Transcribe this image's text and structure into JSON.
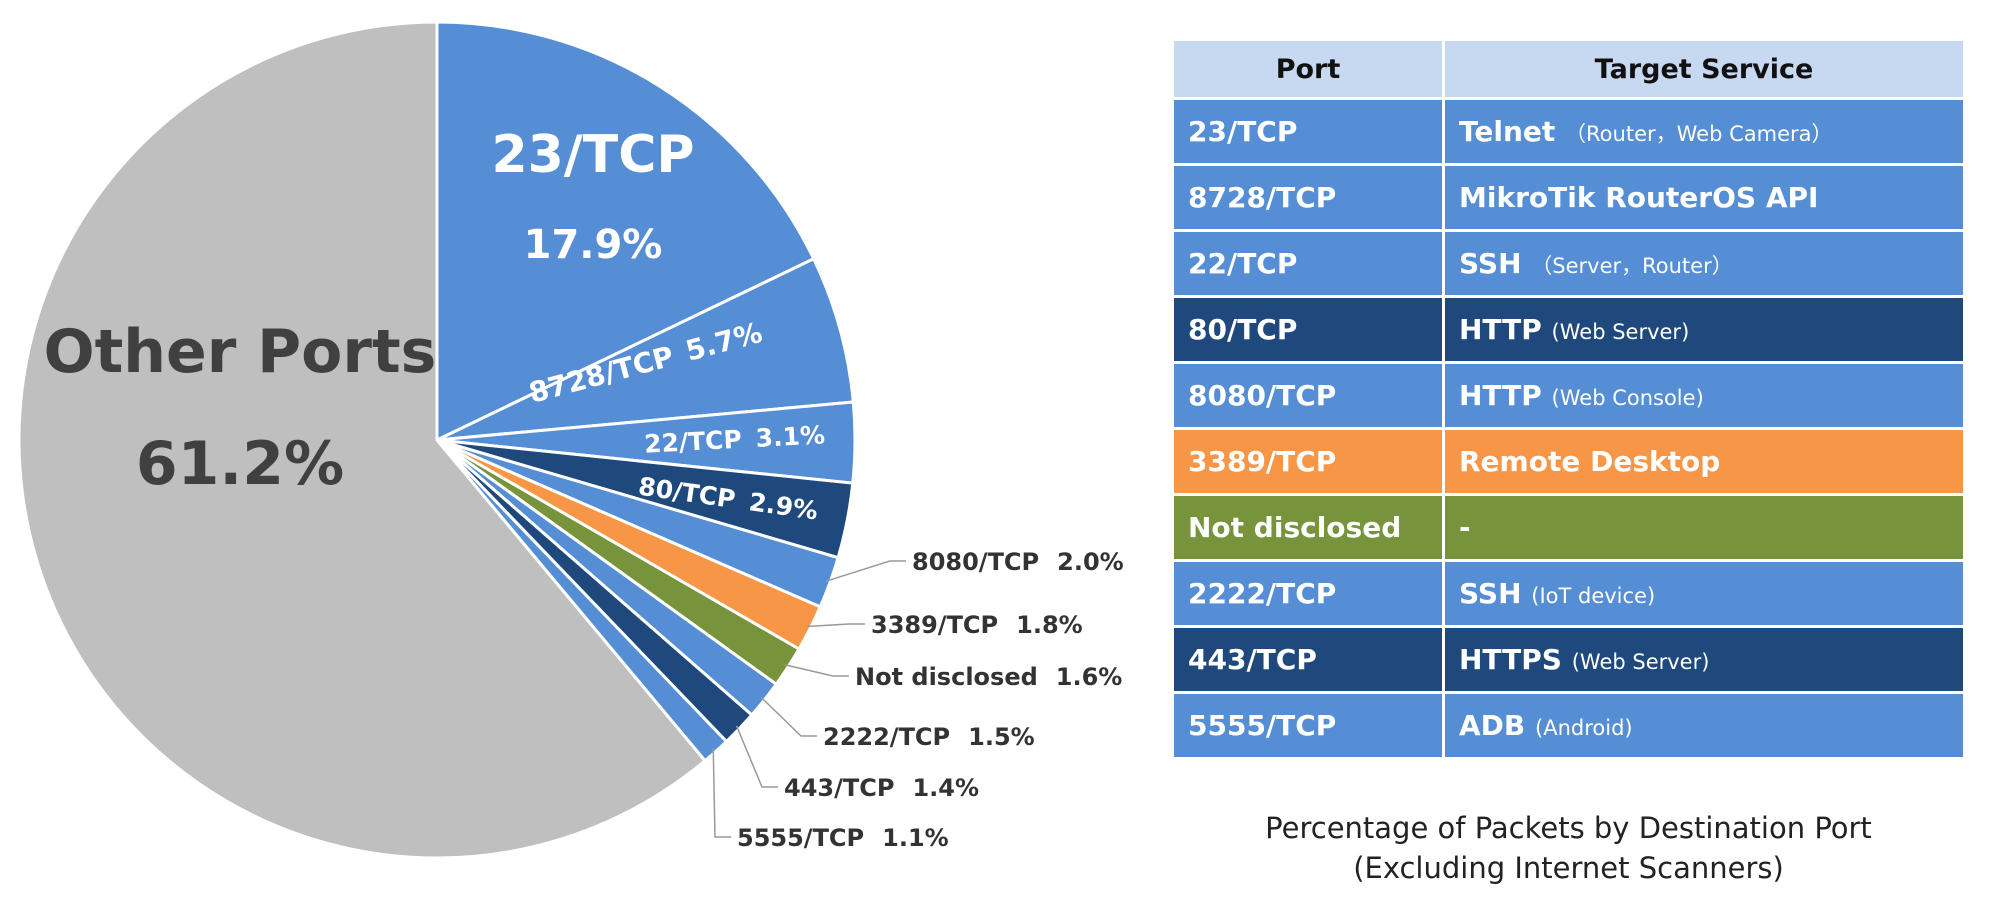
{
  "chart_data": {
    "type": "pie",
    "title": "Percentage of Packets by Destination Port",
    "subtitle": "(Excluding Internet Scanners)",
    "start": "12 o'clock, clockwise",
    "slices": [
      {
        "label": "23/TCP",
        "value": 17.9,
        "display": "17.9%",
        "color": "#558ed5",
        "placement": "inside"
      },
      {
        "label": "8728/TCP",
        "value": 5.7,
        "display": "5.7%",
        "color": "#558ed5",
        "placement": "inside"
      },
      {
        "label": "22/TCP",
        "value": 3.1,
        "display": "3.1%",
        "color": "#558ed5",
        "placement": "inside"
      },
      {
        "label": "80/TCP",
        "value": 2.9,
        "display": "2.9%",
        "color": "#1f497d",
        "placement": "inside"
      },
      {
        "label": "8080/TCP",
        "value": 2.0,
        "display": "2.0%",
        "color": "#558ed5",
        "placement": "outside"
      },
      {
        "label": "3389/TCP",
        "value": 1.8,
        "display": "1.8%",
        "color": "#f79646",
        "placement": "outside"
      },
      {
        "label": "Not disclosed",
        "value": 1.6,
        "display": "1.6%",
        "color": "#77933c",
        "placement": "outside"
      },
      {
        "label": "2222/TCP",
        "value": 1.5,
        "display": "1.5%",
        "color": "#558ed5",
        "placement": "outside"
      },
      {
        "label": "443/TCP",
        "value": 1.4,
        "display": "1.4%",
        "color": "#1f497d",
        "placement": "outside"
      },
      {
        "label": "5555/TCP",
        "value": 1.1,
        "display": "1.1%",
        "color": "#558ed5",
        "placement": "outside"
      },
      {
        "label": "Other Ports",
        "value": 61.2,
        "display": "61.2%",
        "color": "#bfbfbf",
        "placement": "inside"
      }
    ]
  },
  "table": {
    "headers": [
      "Port",
      "Target Service"
    ],
    "header_color": "#c6d9f1",
    "rows": [
      {
        "port": "23/TCP",
        "service": "Telnet",
        "detail": "（Router，Web Camera）",
        "color": "#558ed5"
      },
      {
        "port": "8728/TCP",
        "service": "MikroTik RouterOS API",
        "detail": "",
        "color": "#558ed5"
      },
      {
        "port": "22/TCP",
        "service": "SSH",
        "detail": "（Server，Router）",
        "color": "#558ed5"
      },
      {
        "port": "80/TCP",
        "service": "HTTP",
        "detail": "(Web Server)",
        "color": "#1f497d"
      },
      {
        "port": "8080/TCP",
        "service": "HTTP",
        "detail": "(Web Console)",
        "color": "#558ed5"
      },
      {
        "port": "3389/TCP",
        "service": "Remote Desktop",
        "detail": "",
        "color": "#f79646"
      },
      {
        "port": "Not disclosed",
        "service": "-",
        "detail": "",
        "color": "#77933c"
      },
      {
        "port": "2222/TCP",
        "service": "SSH",
        "detail": "(IoT device)",
        "color": "#558ed5"
      },
      {
        "port": "443/TCP",
        "service": "HTTPS",
        "detail": "(Web Server)",
        "color": "#1f497d"
      },
      {
        "port": "5555/TCP",
        "service": "ADB",
        "detail": "(Android)",
        "color": "#558ed5"
      }
    ]
  },
  "caption": {
    "line1": "Percentage of Packets by Destination Port",
    "line2": "(Excluding Internet Scanners)"
  }
}
